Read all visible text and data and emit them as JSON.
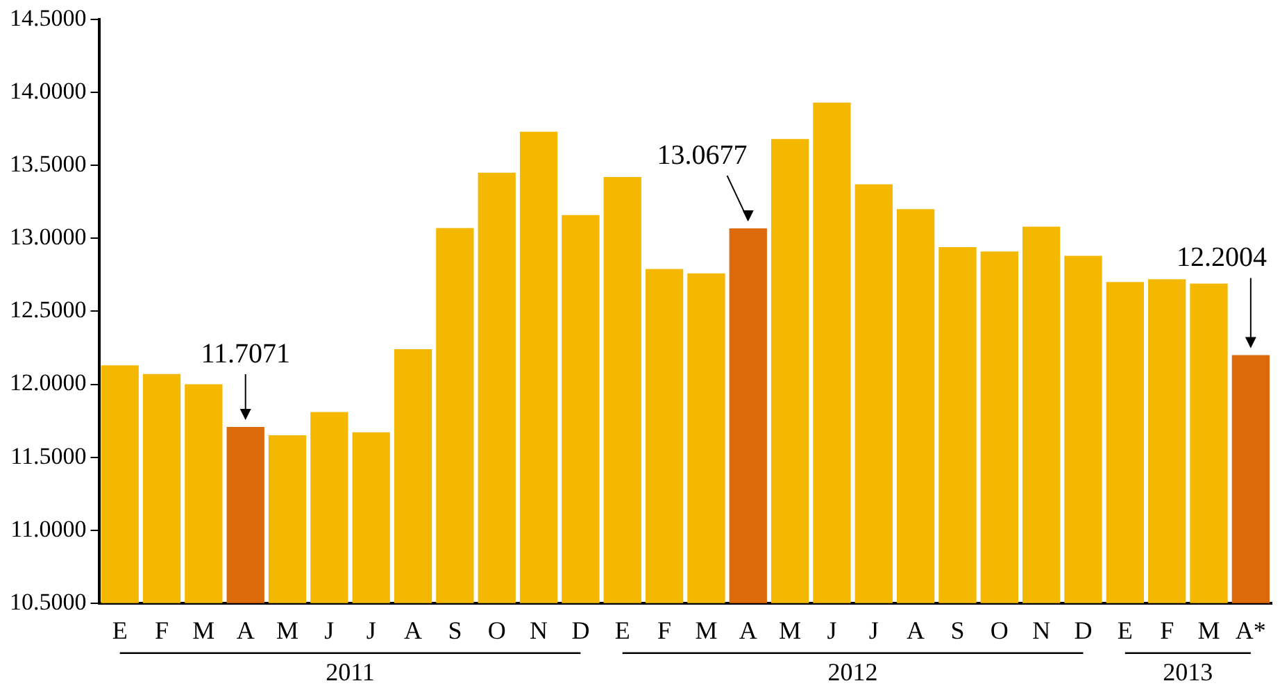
{
  "chart_data": {
    "type": "bar",
    "categories": [
      "E",
      "F",
      "M",
      "A",
      "M",
      "J",
      "J",
      "A",
      "S",
      "O",
      "N",
      "D",
      "E",
      "F",
      "M",
      "A",
      "M",
      "J",
      "J",
      "A",
      "S",
      "O",
      "N",
      "D",
      "E",
      "F",
      "M",
      "A*"
    ],
    "values": [
      12.13,
      12.07,
      12.0,
      11.7071,
      11.65,
      11.81,
      11.67,
      12.24,
      13.07,
      13.45,
      13.73,
      13.16,
      13.42,
      12.79,
      12.76,
      13.0677,
      13.68,
      13.93,
      13.37,
      13.2,
      12.94,
      12.91,
      13.08,
      12.88,
      12.7,
      12.72,
      12.69,
      12.2004
    ],
    "colors": [
      "#f5b800",
      "#f5b800",
      "#f5b800",
      "#dd6a0a",
      "#f5b800",
      "#f5b800",
      "#f5b800",
      "#f5b800",
      "#f5b800",
      "#f5b800",
      "#f5b800",
      "#f5b800",
      "#f5b800",
      "#f5b800",
      "#f5b800",
      "#dd6a0a",
      "#f5b800",
      "#f5b800",
      "#f5b800",
      "#f5b800",
      "#f5b800",
      "#f5b800",
      "#f5b800",
      "#f5b800",
      "#f5b800",
      "#f5b800",
      "#f5b800",
      "#dd6a0a"
    ],
    "value_labels": [
      null,
      null,
      null,
      "11.7071",
      null,
      null,
      null,
      null,
      null,
      null,
      null,
      null,
      null,
      null,
      null,
      "13.0677",
      null,
      null,
      null,
      null,
      null,
      null,
      null,
      null,
      null,
      null,
      null,
      "12.2004"
    ],
    "annotations": [
      "2011",
      "2012",
      "2013"
    ],
    "ylim": [
      10.5,
      14.5
    ],
    "yticks": [
      {
        "value": 10.5,
        "label": "10.5000"
      },
      {
        "value": 11,
        "label": "11.0000"
      },
      {
        "value": 11.5,
        "label": "11.5000"
      },
      {
        "value": 12,
        "label": "12.0000"
      },
      {
        "value": 12.5,
        "label": "12.5000"
      },
      {
        "value": 13,
        "label": "13.0000"
      },
      {
        "value": 13.5,
        "label": "13.5000"
      },
      {
        "value": 14,
        "label": "14.0000"
      },
      {
        "value": 14.5,
        "label": "14.5000"
      }
    ],
    "grid": false,
    "legend": false
  }
}
